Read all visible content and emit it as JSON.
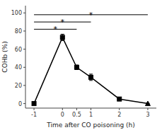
{
  "chart_data": {
    "type": "line",
    "xlabel": "Time after CO poisoning (h)",
    "ylabel": "COHb (%)",
    "x": [
      -1,
      0,
      0.5,
      1,
      2,
      3
    ],
    "series": [
      {
        "values": [
          0,
          73,
          40,
          29,
          5,
          0
        ],
        "errors": [
          0,
          3.5,
          2.5,
          3.5,
          1.5,
          0.3
        ],
        "markers": [
          "square",
          "square",
          "square",
          "square",
          "square",
          "triangle"
        ],
        "color": "black"
      }
    ],
    "annotations": [
      {
        "x1": -1,
        "x2": 0.5,
        "y": 82,
        "label": "*"
      },
      {
        "x1": -1,
        "x2": 1,
        "y": 90,
        "label": "*"
      },
      {
        "x1": -1,
        "x2": 3,
        "y": 98,
        "label": "*"
      }
    ],
    "xlim": [
      -1.3,
      3.3
    ],
    "ylim": [
      -5,
      108
    ],
    "xticks": [
      -1,
      0,
      0.5,
      1,
      2,
      3
    ],
    "yticks": [
      0,
      20,
      40,
      60,
      80,
      100
    ],
    "grid": false
  }
}
